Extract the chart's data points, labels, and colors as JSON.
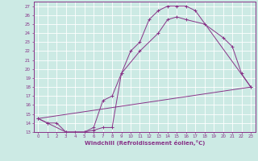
{
  "xlabel": "Windchill (Refroidissement éolien,°C)",
  "bg_color": "#cceae4",
  "grid_color": "#ffffff",
  "line_color": "#883388",
  "xlim": [
    -0.5,
    23.5
  ],
  "ylim": [
    13,
    27.5
  ],
  "yticks": [
    13,
    14,
    15,
    16,
    17,
    18,
    19,
    20,
    21,
    22,
    23,
    24,
    25,
    26,
    27
  ],
  "xticks": [
    0,
    1,
    2,
    3,
    4,
    5,
    6,
    7,
    8,
    9,
    10,
    11,
    12,
    13,
    14,
    15,
    16,
    17,
    18,
    19,
    20,
    21,
    22,
    23
  ],
  "line1_x": [
    0,
    1,
    2,
    3,
    4,
    5,
    6,
    7,
    8,
    9,
    10,
    11,
    12,
    13,
    14,
    15,
    16,
    17,
    23
  ],
  "line1_y": [
    14.5,
    14.0,
    14.0,
    13.0,
    13.0,
    13.0,
    13.2,
    13.5,
    13.5,
    19.5,
    22.0,
    23.0,
    25.5,
    26.5,
    27.0,
    27.0,
    27.0,
    26.5,
    18.0
  ],
  "line2_x": [
    0,
    1,
    3,
    5,
    6,
    7,
    8,
    9,
    11,
    13,
    14,
    15,
    16,
    18,
    20,
    21,
    22,
    23
  ],
  "line2_y": [
    14.5,
    14.0,
    13.0,
    13.0,
    13.5,
    16.5,
    17.0,
    19.5,
    22.0,
    24.0,
    25.5,
    25.8,
    25.5,
    25.0,
    23.5,
    22.5,
    19.5,
    18.0
  ],
  "line3_x": [
    0,
    23
  ],
  "line3_y": [
    14.5,
    18.0
  ],
  "ylabel_fontsize": 5,
  "xlabel_fontsize": 5,
  "tick_fontsize": 4,
  "lw": 0.7,
  "ms": 2.5
}
